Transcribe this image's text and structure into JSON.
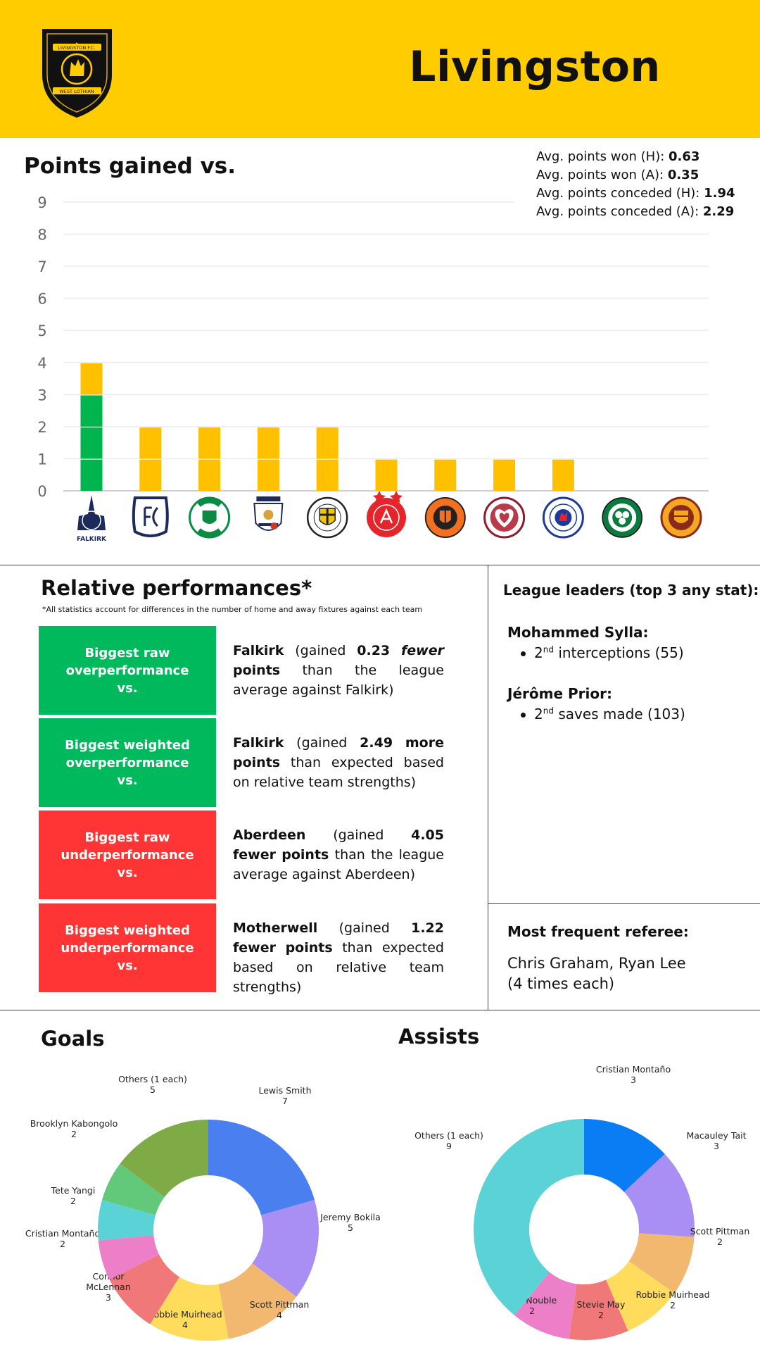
{
  "header": {
    "team_name": "Livingston",
    "bg_color": "#ffcc00"
  },
  "crest": {
    "icon": "livingston-crest-icon",
    "ribbon_top": "LIVINGSTON F.C.",
    "ribbon_bottom": "WEST LOTHIAN"
  },
  "points_section": {
    "title": "Points gained vs.",
    "stats": [
      {
        "label": "Avg. points won (H):",
        "value": "0.63"
      },
      {
        "label": "Avg. points won (A):",
        "value": "0.35"
      },
      {
        "label": "Avg. points conceded (H):",
        "value": "1.94"
      },
      {
        "label": "Avg. points conceded (A):",
        "value": "2.29"
      }
    ]
  },
  "relative": {
    "title": "Relative performances*",
    "note": "*All statistics account for differences in the number of home and away fixtures against each team",
    "rows": [
      {
        "label": "Biggest raw overperformance vs.",
        "team": "Falkirk",
        "pre": " (gained ",
        "num": "0.23",
        "emph": "fewer",
        "bold_tail": "points",
        "rest": " than the league average against Falkirk)",
        "color": "#00b95c"
      },
      {
        "label": "Biggest weighted overperformance vs.",
        "team": "Falkirk",
        "pre": " (gained ",
        "num": "2.49",
        "emph": "more",
        "bold_tail": "points",
        "rest": " than expected based on relative team strengths)",
        "color": "#00b95c"
      },
      {
        "label": "Biggest raw underperformance vs.",
        "team": "Aberdeen",
        "pre": " (gained ",
        "num": "4.05",
        "emph": "fewer",
        "bold_tail": "points",
        "rest": " than the league average against Aberdeen)",
        "color": "#ff3535"
      },
      {
        "label": "Biggest weighted underperformance vs.",
        "team": "Motherwell",
        "pre": " (gained ",
        "num": "1.22",
        "emph": "fewer",
        "bold_tail": "points",
        "rest": " than expected based on relative team strengths)",
        "color": "#ff3535"
      }
    ]
  },
  "leaders": {
    "title": "League leaders (top 3 any stat):",
    "players": [
      {
        "name": "Mohammed Sylla:",
        "rank": "2",
        "suffix": "nd",
        "stat": " interceptions (55)"
      },
      {
        "name": "Jérôme Prior:",
        "rank": "2",
        "suffix": "nd",
        "stat": " saves made (103)"
      }
    ]
  },
  "referee": {
    "title": "Most frequent referee:",
    "line1": "Chris Graham, Ryan Lee",
    "line2": "(4 times each)"
  },
  "goals_title": "Goals",
  "assists_title": "Assists",
  "chart_data": [
    {
      "type": "bar",
      "stacked": true,
      "title": "Points gained vs.",
      "categories": [
        "Falkirk",
        "Dundee",
        "Hibernian",
        "Kilmarnock",
        "St Mirren",
        "Aberdeen",
        "Dundee United",
        "Hearts",
        "Rangers",
        "Celtic",
        "Motherwell"
      ],
      "series": [
        {
          "values": [
            3,
            0,
            0,
            0,
            0,
            0,
            0,
            0,
            0,
            0,
            0
          ],
          "color": "#00b44e"
        },
        {
          "values": [
            1,
            2,
            2,
            2,
            2,
            1,
            1,
            1,
            1,
            0,
            0
          ],
          "color": "#ffc000"
        }
      ],
      "ylim": [
        0,
        9
      ],
      "yticks": [
        "0",
        "1",
        "2",
        "3",
        "4",
        "5",
        "6",
        "7",
        "8",
        "9"
      ],
      "grid": true,
      "logo_icons": [
        "falkirk-logo-icon",
        "dundee-logo-icon",
        "hibernian-logo-icon",
        "kilmarnock-logo-icon",
        "st-mirren-logo-icon",
        "aberdeen-logo-icon",
        "dundee-united-logo-icon",
        "hearts-logo-icon",
        "rangers-logo-icon",
        "celtic-logo-icon",
        "motherwell-logo-icon"
      ],
      "falkirk_label": "FALKIRK"
    },
    {
      "type": "pie",
      "donut": true,
      "title": "Goals",
      "slices": [
        {
          "name": "Lewis Smith",
          "value": 7,
          "color": "#4a7ff0"
        },
        {
          "name": "Jeremy Bokila",
          "value": 5,
          "color": "#a98ff3"
        },
        {
          "name": "Scott Pittman",
          "value": 4,
          "color": "#f3b870"
        },
        {
          "name": "Robbie Muirhead",
          "value": 4,
          "color": "#ffdc5b"
        },
        {
          "name": "Connor McLennan",
          "value": 3,
          "color": "#f07878"
        },
        {
          "name": "Cristian Montaño",
          "value": 2,
          "color": "#ec7fc8"
        },
        {
          "name": "Tete Yangi",
          "value": 2,
          "color": "#5bd3d6"
        },
        {
          "name": "Brooklyn Kabongolo",
          "value": 2,
          "color": "#62c97a"
        },
        {
          "name": "Others (1 each)",
          "value": 5,
          "color": "#7fab47"
        }
      ]
    },
    {
      "type": "pie",
      "donut": true,
      "title": "Assists",
      "slices": [
        {
          "name": "Cristian Montaño",
          "value": 3,
          "color": "#0a7df4"
        },
        {
          "name": "Macauley Tait",
          "value": 3,
          "color": "#a98ff3"
        },
        {
          "name": "Scott Pittman",
          "value": 2,
          "color": "#f3b870"
        },
        {
          "name": "Robbie Muirhead",
          "value": 2,
          "color": "#ffdc5b"
        },
        {
          "name": "Stevie May",
          "value": 2,
          "color": "#f07878"
        },
        {
          "name": "Joel Nouble",
          "value": 2,
          "color": "#ec7fc8"
        },
        {
          "name": "Others (1 each)",
          "value": 9,
          "color": "#5bd3d6"
        }
      ]
    }
  ]
}
